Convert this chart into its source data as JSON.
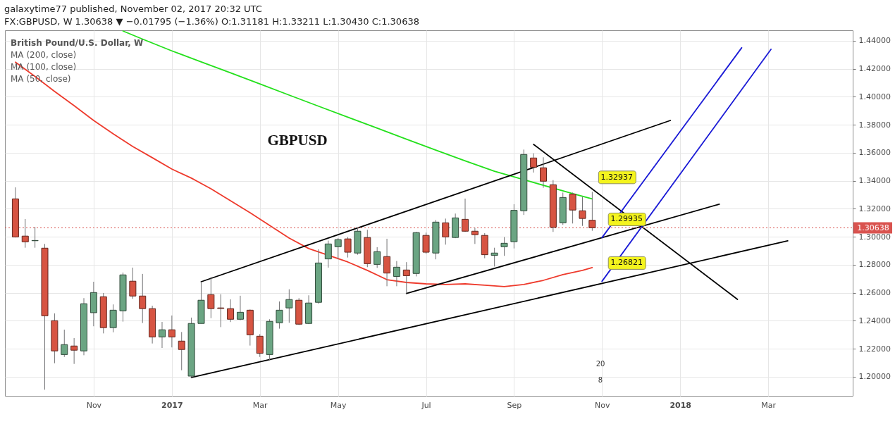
{
  "chart_data": {
    "type": "candlestick",
    "title": "GBPUSD",
    "x": [
      "2016-09-12",
      "2016-09-19",
      "2016-09-26",
      "2016-10-03",
      "2016-10-10",
      "2016-10-17",
      "2016-10-24",
      "2016-10-31",
      "2016-11-07",
      "2016-11-14",
      "2016-11-21",
      "2016-11-28",
      "2016-12-05",
      "2016-12-12",
      "2016-12-19",
      "2016-12-26",
      "2017-01-02",
      "2017-01-09",
      "2017-01-16",
      "2017-01-23",
      "2017-01-30",
      "2017-02-06",
      "2017-02-13",
      "2017-02-20",
      "2017-02-27",
      "2017-03-06",
      "2017-03-13",
      "2017-03-20",
      "2017-03-27",
      "2017-04-03",
      "2017-04-10",
      "2017-04-17",
      "2017-04-24",
      "2017-05-01",
      "2017-05-08",
      "2017-05-15",
      "2017-05-22",
      "2017-05-29",
      "2017-06-05",
      "2017-06-12",
      "2017-06-19",
      "2017-06-26",
      "2017-07-03",
      "2017-07-10",
      "2017-07-17",
      "2017-07-24",
      "2017-07-31",
      "2017-08-07",
      "2017-08-14",
      "2017-08-21",
      "2017-08-28",
      "2017-09-04",
      "2017-09-11",
      "2017-09-18",
      "2017-09-25",
      "2017-10-02",
      "2017-10-09",
      "2017-10-16",
      "2017-10-23",
      "2017-10-30"
    ],
    "ohlc": [
      [
        1.3271,
        1.3353,
        1.2995,
        1.2999
      ],
      [
        1.3005,
        1.3127,
        1.2922,
        1.2964
      ],
      [
        1.2972,
        1.307,
        1.2922,
        1.2974
      ],
      [
        1.2919,
        1.2949,
        1.1908,
        1.2436
      ],
      [
        1.2401,
        1.2453,
        1.2097,
        1.2185
      ],
      [
        1.2159,
        1.2337,
        1.2142,
        1.223
      ],
      [
        1.222,
        1.2277,
        1.2092,
        1.219
      ],
      [
        1.2185,
        1.2562,
        1.2154,
        1.2522
      ],
      [
        1.2458,
        1.2679,
        1.2361,
        1.2602
      ],
      [
        1.2572,
        1.2599,
        1.231,
        1.2351
      ],
      [
        1.2351,
        1.2517,
        1.2318,
        1.2476
      ],
      [
        1.2471,
        1.2745,
        1.2394,
        1.2728
      ],
      [
        1.2683,
        1.278,
        1.2557,
        1.2577
      ],
      [
        1.2577,
        1.2735,
        1.2384,
        1.2487
      ],
      [
        1.2487,
        1.2508,
        1.2238,
        1.2285
      ],
      [
        1.2285,
        1.2392,
        1.2206,
        1.2336
      ],
      [
        1.2336,
        1.2438,
        1.221,
        1.2285
      ],
      [
        1.2255,
        1.232,
        1.2047,
        1.2195
      ],
      [
        1.2005,
        1.2423,
        1.1995,
        1.2381
      ],
      [
        1.2381,
        1.2679,
        1.2381,
        1.2547
      ],
      [
        1.2587,
        1.2713,
        1.2419,
        1.2487
      ],
      [
        1.2492,
        1.259,
        1.2355,
        1.2488
      ],
      [
        1.2487,
        1.2553,
        1.2391,
        1.2411
      ],
      [
        1.2411,
        1.2579,
        1.2405,
        1.2461
      ],
      [
        1.2476,
        1.2481,
        1.2223,
        1.23
      ],
      [
        1.229,
        1.2305,
        1.2142,
        1.2168
      ],
      [
        1.2159,
        1.2411,
        1.2117,
        1.2396
      ],
      [
        1.2386,
        1.2538,
        1.2344,
        1.2476
      ],
      [
        1.2492,
        1.2625,
        1.2386,
        1.2552
      ],
      [
        1.2547,
        1.2562,
        1.237,
        1.2376
      ],
      [
        1.2381,
        1.2582,
        1.2376,
        1.2527
      ],
      [
        1.2532,
        1.2911,
        1.2522,
        1.2813
      ],
      [
        1.2842,
        1.2973,
        1.278,
        1.2949
      ],
      [
        1.2929,
        1.299,
        1.2839,
        1.298
      ],
      [
        1.2985,
        1.2998,
        1.2852,
        1.289
      ],
      [
        1.2884,
        1.3065,
        1.2872,
        1.304
      ],
      [
        1.2995,
        1.305,
        1.2783,
        1.2808
      ],
      [
        1.2803,
        1.2926,
        1.2778,
        1.2894
      ],
      [
        1.2859,
        1.2986,
        1.2647,
        1.2741
      ],
      [
        1.2717,
        1.2827,
        1.2647,
        1.2783
      ],
      [
        1.2763,
        1.2819,
        1.2595,
        1.2722
      ],
      [
        1.2738,
        1.3035,
        1.2717,
        1.303
      ],
      [
        1.301,
        1.303,
        1.2879,
        1.289
      ],
      [
        1.2884,
        1.312,
        1.2839,
        1.3105
      ],
      [
        1.31,
        1.313,
        1.2944,
        1.2999
      ],
      [
        1.2995,
        1.3166,
        1.299,
        1.3135
      ],
      [
        1.3125,
        1.3273,
        1.3035,
        1.304
      ],
      [
        1.304,
        1.3065,
        1.2949,
        1.3015
      ],
      [
        1.301,
        1.3026,
        1.2847,
        1.2872
      ],
      [
        1.2867,
        1.2922,
        1.2788,
        1.2884
      ],
      [
        1.2929,
        1.2998,
        1.2864,
        1.2954
      ],
      [
        1.2965,
        1.3233,
        1.2917,
        1.3189
      ],
      [
        1.3186,
        1.3623,
        1.3156,
        1.3588
      ],
      [
        1.3563,
        1.3596,
        1.3459,
        1.3497
      ],
      [
        1.3493,
        1.3568,
        1.335,
        1.3397
      ],
      [
        1.3372,
        1.3405,
        1.3035,
        1.3068
      ],
      [
        1.31,
        1.3316,
        1.3085,
        1.3281
      ],
      [
        1.3305,
        1.3316,
        1.3095,
        1.3191
      ],
      [
        1.3186,
        1.3286,
        1.3078,
        1.3131
      ],
      [
        1.31181,
        1.33211,
        1.3043,
        1.30638
      ]
    ],
    "colors": [
      "#d75442",
      "#d75442",
      "#6ba583",
      "#d75442",
      "#d75442",
      "#6ba583",
      "#d75442",
      "#6ba583",
      "#6ba583",
      "#d75442",
      "#6ba583",
      "#6ba583",
      "#d75442",
      "#d75442",
      "#d75442",
      "#6ba583",
      "#d75442",
      "#d75442",
      "#6ba583",
      "#6ba583",
      "#d75442",
      "#d75442",
      "#d75442",
      "#6ba583",
      "#d75442",
      "#d75442",
      "#6ba583",
      "#6ba583",
      "#6ba583",
      "#d75442",
      "#6ba583",
      "#6ba583",
      "#6ba583",
      "#6ba583",
      "#d75442",
      "#6ba583",
      "#d75442",
      "#6ba583",
      "#d75442",
      "#6ba583",
      "#d75442",
      "#6ba583",
      "#d75442",
      "#6ba583",
      "#d75442",
      "#6ba583",
      "#d75442",
      "#d75442",
      "#d75442",
      "#6ba583",
      "#6ba583",
      "#6ba583",
      "#6ba583",
      "#d75442",
      "#d75442",
      "#d75442",
      "#6ba583",
      "#d75442",
      "#d75442",
      "#d75442"
    ],
    "series": [
      {
        "type": "line",
        "color": "#24e01c",
        "x": [
          "2016-11-28",
          "2016-12-12",
          "2017-01-02",
          "2017-01-23",
          "2017-02-13",
          "2017-03-06",
          "2017-03-27",
          "2017-04-17",
          "2017-05-08",
          "2017-05-29",
          "2017-06-19",
          "2017-07-10",
          "2017-07-31",
          "2017-08-21",
          "2017-10-16",
          "2017-10-30"
        ],
        "values": [
          1.447,
          1.4412,
          1.4328,
          1.4249,
          1.4171,
          1.4092,
          1.4012,
          1.3933,
          1.3854,
          1.3776,
          1.3697,
          1.3619,
          1.3542,
          1.3468,
          1.3308,
          1.3271
        ]
      },
      {
        "type": "line",
        "color": "#ee3a2c",
        "x": [
          "2016-09-12",
          "2016-09-26",
          "2016-10-10",
          "2016-10-24",
          "2016-11-07",
          "2016-11-21",
          "2016-12-05",
          "2016-12-19",
          "2017-01-02",
          "2017-01-16",
          "2017-01-30",
          "2017-02-13",
          "2017-02-27",
          "2017-03-13",
          "2017-03-27",
          "2017-04-10",
          "2017-05-08",
          "2017-05-22",
          "2017-06-05",
          "2017-06-19",
          "2017-07-03",
          "2017-07-17",
          "2017-07-31",
          "2017-08-14",
          "2017-08-28",
          "2017-09-11",
          "2017-09-25",
          "2017-10-09",
          "2017-10-23",
          "2017-10-30"
        ],
        "values": [
          1.4247,
          1.4145,
          1.4039,
          1.3937,
          1.3831,
          1.3736,
          1.3645,
          1.3565,
          1.3484,
          1.3419,
          1.3343,
          1.3258,
          1.3172,
          1.3082,
          1.2991,
          1.2916,
          1.282,
          1.276,
          1.2694,
          1.2674,
          1.2664,
          1.2659,
          1.2664,
          1.2654,
          1.2644,
          1.2659,
          1.2689,
          1.273,
          1.276,
          1.278
        ]
      },
      {
        "type": "line",
        "color": "#000000",
        "x": [
          "2017-01-23",
          "2017-12-25"
        ],
        "values": [
          1.2679,
          1.3831
        ]
      },
      {
        "type": "line",
        "color": "#000000",
        "x": [
          "2017-01-16",
          "2018-03-19"
        ],
        "values": [
          1.1995,
          1.2971
        ]
      },
      {
        "type": "line",
        "color": "#000000",
        "x": [
          "2017-06-19",
          "2018-01-29"
        ],
        "values": [
          1.2595,
          1.3233
        ]
      },
      {
        "type": "line",
        "color": "#000000",
        "x": [
          "2017-09-18",
          "2018-02-11"
        ],
        "values": [
          1.366,
          1.2553
        ]
      },
      {
        "type": "line",
        "color": "#1a1ad6",
        "x": [
          "2017-11-06",
          "2018-02-14"
        ],
        "values": [
          1.2994,
          1.435
        ]
      },
      {
        "type": "line",
        "color": "#1a1ad6",
        "x": [
          "2017-11-06",
          "2018-03-07"
        ],
        "values": [
          1.2682,
          1.4339
        ]
      }
    ],
    "xlim": [
      "2016-09-07",
      "2018-05-02"
    ],
    "xticks": [
      {
        "value": "2016-11-07",
        "label": "Nov"
      },
      {
        "value": "2017-01-02",
        "label": "2017"
      },
      {
        "value": "2017-03-06",
        "label": "Mar"
      },
      {
        "value": "2017-05-01",
        "label": "May"
      },
      {
        "value": "2017-07-03",
        "label": "Jul"
      },
      {
        "value": "2017-09-04",
        "label": "Sep"
      },
      {
        "value": "2017-11-06",
        "label": "Nov"
      },
      {
        "value": "2018-01-01",
        "label": "2018"
      },
      {
        "value": "2018-03-05",
        "label": "Mar"
      }
    ],
    "ylim": [
      1.1864,
      1.4475
    ],
    "yticks": [
      {
        "value": 1.2,
        "label": "1.20000"
      },
      {
        "value": 1.22,
        "label": "1.22000"
      },
      {
        "value": 1.24,
        "label": "1.24000"
      },
      {
        "value": 1.26,
        "label": "1.26000"
      },
      {
        "value": 1.28,
        "label": "1.28000"
      },
      {
        "value": 1.3,
        "label": "1.30000"
      },
      {
        "value": 1.32,
        "label": "1.32000"
      },
      {
        "value": 1.34,
        "label": "1.34000"
      },
      {
        "value": 1.36,
        "label": "1.36000"
      },
      {
        "value": 1.38,
        "label": "1.38000"
      },
      {
        "value": 1.4,
        "label": "1.40000"
      },
      {
        "value": 1.42,
        "label": "1.42000"
      },
      {
        "value": 1.44,
        "label": "1.44000"
      }
    ],
    "grid": true,
    "ref_lines": [
      {
        "axis": "y",
        "value": 1.30638,
        "label": "1.30638",
        "color": "#d9534f",
        "line_style": "dotted"
      }
    ],
    "annotations": [
      "galaxytime77 published, November 02, 2017 20:32 UTC",
      "FX:GBPUSD, W 1.30638 ▼ −0.01795 (−1.36%) O:1.31181 H:1.33211 L:1.30430 C:1.30638",
      "British Pound/U.S. Dollar, W",
      "MA (200, close)",
      "MA (100, close)",
      "MA (50, close)",
      "20",
      "8",
      {
        "text": "1.32937",
        "x": "2017-10-30",
        "y": 1.32937
      },
      {
        "text": "1.29935",
        "x": "2017-11-06",
        "y": 1.29935
      },
      {
        "text": "1.26821",
        "x": "2017-11-06",
        "y": 1.26821
      }
    ]
  }
}
